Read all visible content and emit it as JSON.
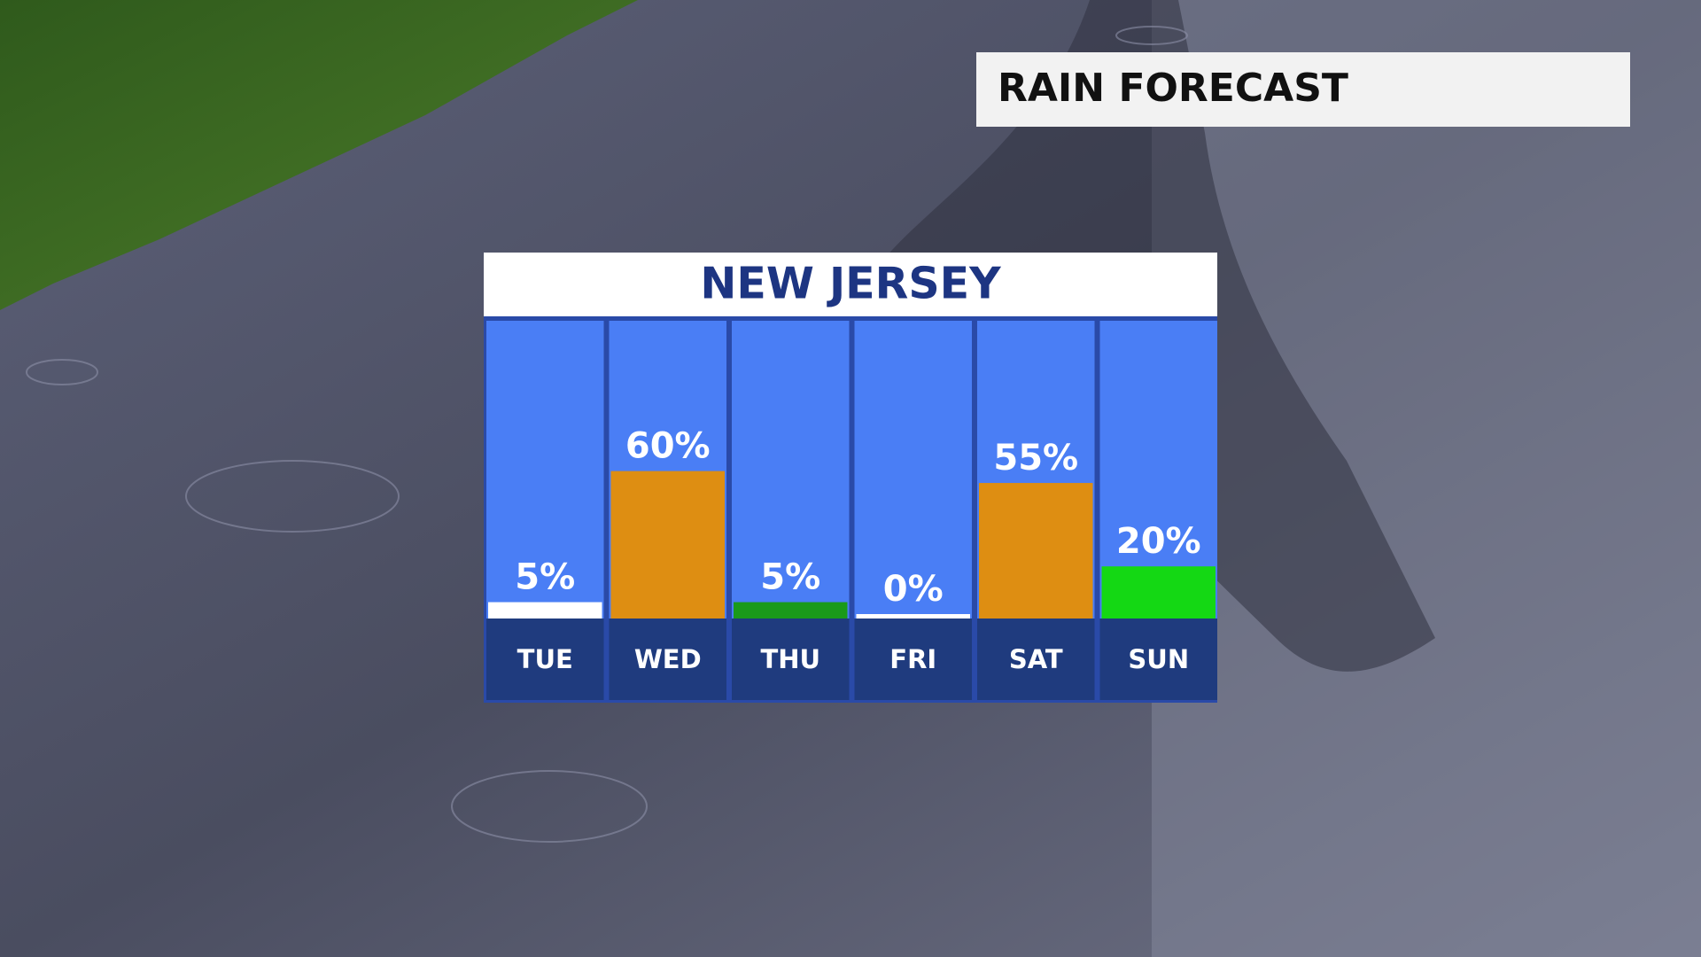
{
  "header": {
    "title": "RAIN FORECAST"
  },
  "chart_data": {
    "type": "bar",
    "title": "NEW JERSEY",
    "categories": [
      "TUE",
      "WED",
      "THU",
      "FRI",
      "SAT",
      "SUN"
    ],
    "values": [
      5,
      60,
      5,
      0,
      55,
      20
    ],
    "value_labels": [
      "5%",
      "60%",
      "5%",
      "0%",
      "55%",
      "20%"
    ],
    "colors": [
      "#ffffff",
      "#de8e12",
      "#1a9a1a",
      "#ffffff",
      "#de8e12",
      "#14d814"
    ]
  }
}
